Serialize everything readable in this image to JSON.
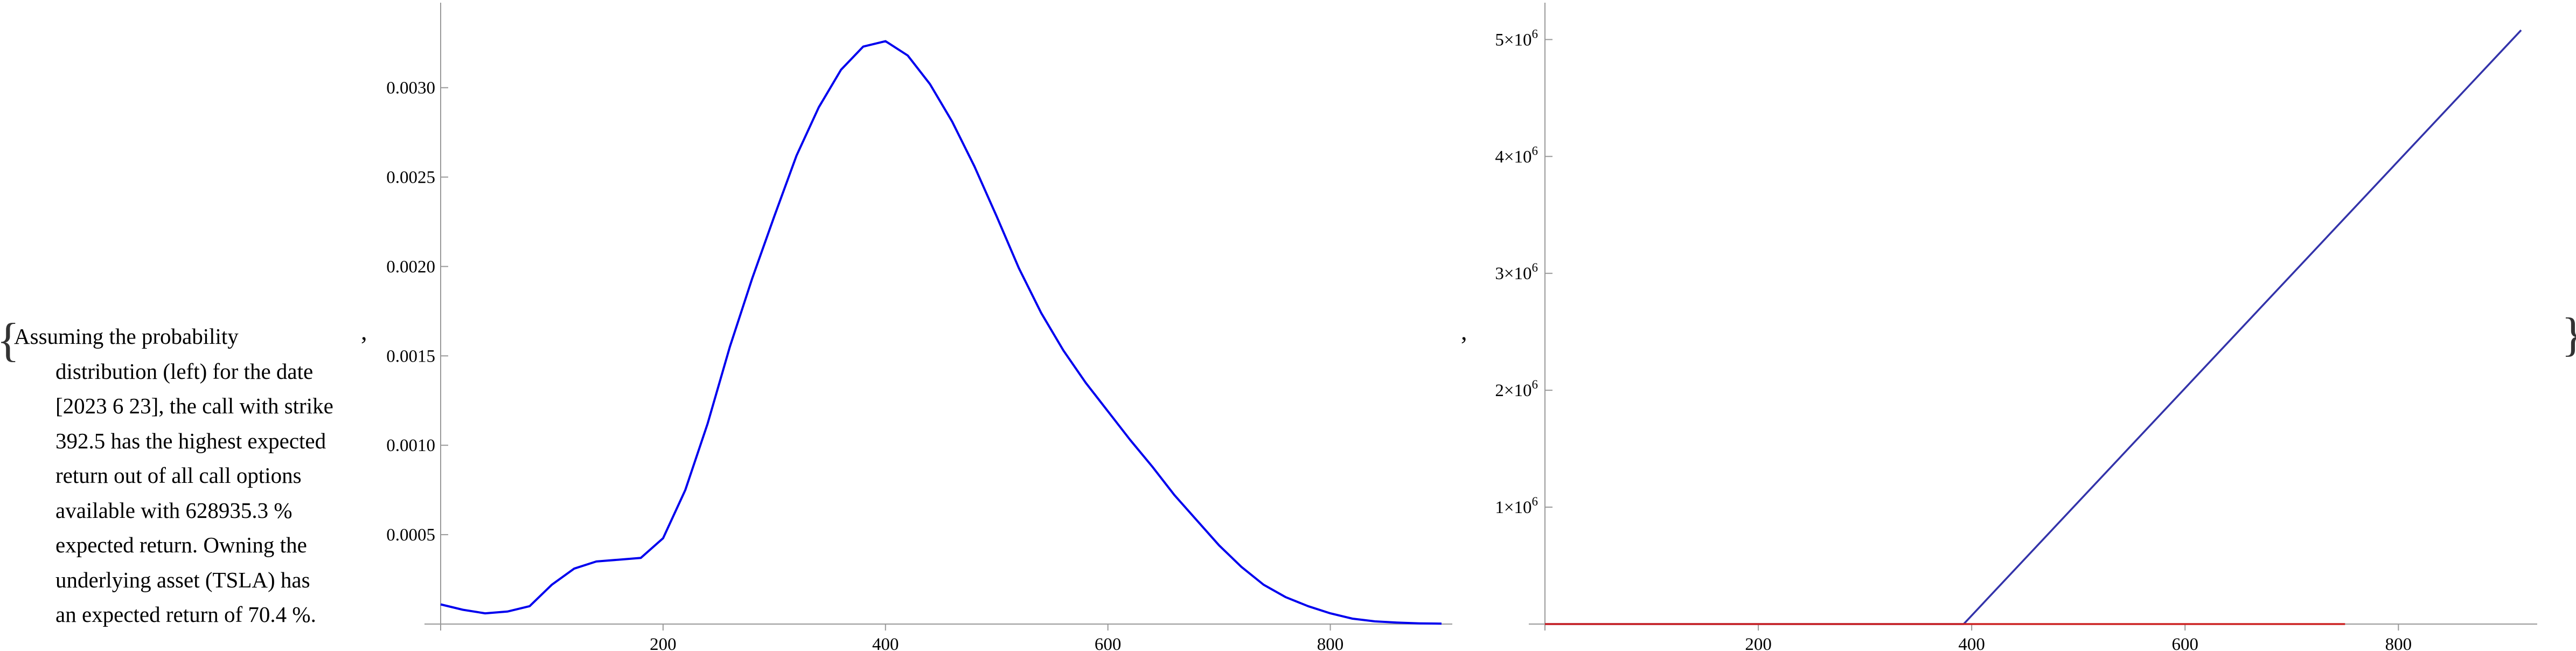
{
  "braces": {
    "open": "{",
    "close": "}"
  },
  "separators": [
    ",",
    ","
  ],
  "note": {
    "lines": [
      "Assuming the probability",
      "distribution (left) for the date",
      "[2023 6 23], the call with strike",
      "392.5 has the highest expected",
      "return out of all call options",
      "available with 628935.3 %",
      "expected return. Owning the",
      "underlying asset (TSLA) has",
      "an expected return of 70.4 %."
    ]
  },
  "chart_data": [
    {
      "type": "line",
      "title": "",
      "xlabel": "",
      "ylabel": "",
      "xlim": [
        0,
        900
      ],
      "ylim": [
        0,
        0.0034
      ],
      "x_ticks": [
        {
          "value": 200,
          "label": "200"
        },
        {
          "value": 400,
          "label": "400"
        },
        {
          "value": 600,
          "label": "600"
        },
        {
          "value": 800,
          "label": "800"
        }
      ],
      "y_ticks": [
        {
          "value": 0.0005,
          "label": "0.0005"
        },
        {
          "value": 0.001,
          "label": "0.0010"
        },
        {
          "value": 0.0015,
          "label": "0.0015"
        },
        {
          "value": 0.002,
          "label": "0.0020"
        },
        {
          "value": 0.0025,
          "label": "0.0025"
        },
        {
          "value": 0.003,
          "label": "0.0030"
        }
      ],
      "series": [
        {
          "color": "#0000ee",
          "x": [
            0,
            20,
            40,
            60,
            80,
            100,
            120,
            140,
            160,
            180,
            200,
            220,
            240,
            260,
            280,
            300,
            320,
            340,
            360,
            380,
            400,
            420,
            440,
            460,
            480,
            500,
            520,
            540,
            560,
            580,
            600,
            620,
            640,
            660,
            680,
            700,
            720,
            740,
            760,
            780,
            800,
            820,
            840,
            860,
            880,
            900
          ],
          "values": [
            0.00011,
            8e-05,
            6e-05,
            7e-05,
            0.0001,
            0.00022,
            0.00031,
            0.00035,
            0.00036,
            0.00037,
            0.00048,
            0.00075,
            0.00112,
            0.00155,
            0.00193,
            0.00228,
            0.00262,
            0.00289,
            0.0031,
            0.00323,
            0.00326,
            0.00318,
            0.00302,
            0.00281,
            0.00256,
            0.00228,
            0.00199,
            0.00174,
            0.00153,
            0.00135,
            0.00119,
            0.00103,
            0.00088,
            0.00072,
            0.00058,
            0.00044,
            0.00032,
            0.00022,
            0.00015,
            0.0001,
            6e-05,
            3e-05,
            1.5e-05,
            8e-06,
            4e-06,
            2e-06
          ]
        }
      ]
    },
    {
      "type": "line",
      "title": "",
      "xlabel": "",
      "ylabel": "",
      "xlim": [
        0,
        920
      ],
      "ylim": [
        0,
        5200000
      ],
      "x_ticks": [
        {
          "value": 200,
          "label": "200"
        },
        {
          "value": 400,
          "label": "400"
        },
        {
          "value": 600,
          "label": "600"
        },
        {
          "value": 800,
          "label": "800"
        }
      ],
      "y_ticks": [
        {
          "value": 1000000,
          "label": "1×10",
          "exp": "6"
        },
        {
          "value": 2000000,
          "label": "2×10",
          "exp": "6"
        },
        {
          "value": 3000000,
          "label": "3×10",
          "exp": "6"
        },
        {
          "value": 4000000,
          "label": "4×10",
          "exp": "6"
        },
        {
          "value": 5000000,
          "label": "5×10",
          "exp": "6"
        }
      ],
      "series": [
        {
          "color": "#3333aa",
          "x": [
            0,
            392.5,
            915
          ],
          "values": [
            0,
            0,
            5080000
          ]
        },
        {
          "color": "#cc2222",
          "x": [
            0,
            750
          ],
          "values": [
            0,
            0
          ]
        }
      ]
    }
  ]
}
